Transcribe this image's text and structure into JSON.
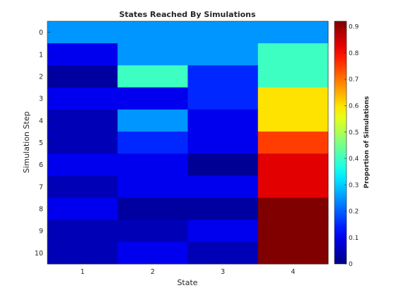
{
  "chart_data": {
    "type": "heatmap",
    "title": "States Reached By Simulations",
    "xlabel": "State",
    "ylabel": "Simulation Step",
    "x_categories": [
      "1",
      "2",
      "3",
      "4"
    ],
    "y_categories": [
      "0",
      "1",
      "2",
      "3",
      "4",
      "5",
      "6",
      "7",
      "8",
      "9",
      "10"
    ],
    "values": [
      [
        0.25,
        0.25,
        0.25,
        0.25
      ],
      [
        0.1,
        0.25,
        0.25,
        0.4
      ],
      [
        0.03,
        0.4,
        0.15,
        0.4
      ],
      [
        0.1,
        0.1,
        0.15,
        0.6
      ],
      [
        0.05,
        0.25,
        0.1,
        0.6
      ],
      [
        0.05,
        0.15,
        0.1,
        0.75
      ],
      [
        0.1,
        0.1,
        0.02,
        0.83
      ],
      [
        0.05,
        0.1,
        0.1,
        0.83
      ],
      [
        0.1,
        0.03,
        0.03,
        0.92
      ],
      [
        0.05,
        0.05,
        0.1,
        0.92
      ],
      [
        0.05,
        0.1,
        0.05,
        0.92
      ]
    ],
    "colormap": "jet",
    "colorbar": {
      "label": "Proportion of Simulations",
      "range": [
        0,
        0.92
      ],
      "ticks": [
        "0",
        "0.1",
        "0.2",
        "0.3",
        "0.4",
        "0.5",
        "0.6",
        "0.7",
        "0.8",
        "0.9"
      ],
      "tick_values": [
        0,
        0.1,
        0.2,
        0.3,
        0.4,
        0.5,
        0.6,
        0.7,
        0.8,
        0.9
      ]
    },
    "grid": false
  }
}
